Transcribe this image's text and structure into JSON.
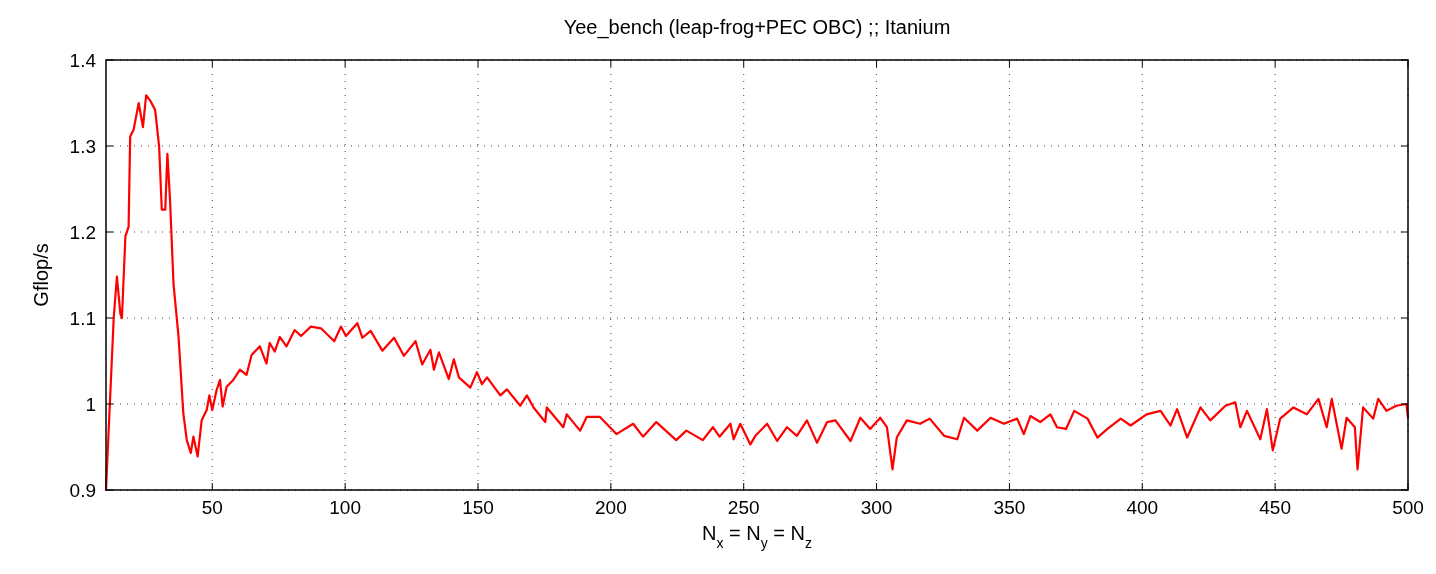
{
  "chart_data": {
    "type": "line",
    "title": "Yee_bench (leap-frog+PEC OBC) ;; Itanium",
    "xlabel": "N$_{x}$ = N$_{y}$ = N$_{z}$",
    "ylabel": "Gflop/s",
    "xlim": [
      10,
      500
    ],
    "xticks": [
      50,
      100,
      150,
      200,
      250,
      300,
      350,
      400,
      450,
      500
    ],
    "ylim": [
      0.9,
      1.4
    ],
    "yticks": [
      0.9,
      1,
      1.1,
      1.2,
      1.3,
      1.4
    ],
    "grid": true,
    "line_style": "solid",
    "marker": "none",
    "series": [
      {
        "color": "#ff0000",
        "x": [
          10,
          12.9,
          14.1,
          15.4,
          16,
          17.3,
          18.5,
          19.1,
          20.4,
          22.3,
          23.9,
          25.1,
          26.6,
          28.5,
          30,
          31,
          32.3,
          33.1,
          34.1,
          35.4,
          37.3,
          39.1,
          40.4,
          41.9,
          42.9,
          44.5,
          46,
          47.9,
          48.9,
          50,
          51.6,
          52.9,
          53.9,
          55.4,
          57.9,
          60.4,
          62.9,
          64.8,
          67.9,
          70.4,
          71.6,
          73.5,
          75.4,
          77.9,
          81,
          83.4,
          87.1,
          90.9,
          95.9,
          98.4,
          100.3,
          104.6,
          106.5,
          109.6,
          114,
          118.4,
          122.1,
          126.5,
          129,
          132.1,
          133.4,
          135.3,
          139,
          140.9,
          142.8,
          147.1,
          149.6,
          151.5,
          153.4,
          158.4,
          160.9,
          165.9,
          168.4,
          170.9,
          175.3,
          175.9,
          182.1,
          183.4,
          188.4,
          190.9,
          195.9,
          202.1,
          208.4,
          212.1,
          217.1,
          224.6,
          228.4,
          234.6,
          238.4,
          240.9,
          245,
          246.2,
          248.7,
          252.5,
          254.4,
          258.8,
          262.6,
          266.3,
          270,
          273.8,
          277.6,
          281.4,
          284.5,
          290.2,
          293.9,
          297.6,
          301.4,
          303.9,
          306,
          307.6,
          311.4,
          316.4,
          320,
          325.4,
          330.4,
          332.9,
          337.9,
          342.9,
          347.9,
          352.9,
          355.4,
          357.9,
          361.6,
          365.4,
          367.9,
          371.3,
          374.4,
          379.4,
          383.1,
          386.9,
          391.9,
          395.6,
          401.6,
          406.9,
          410.6,
          413.1,
          416.9,
          421.9,
          425.6,
          431.3,
          435,
          436.9,
          439.4,
          444.4,
          446.9,
          449.1,
          451.9,
          456.9,
          461.9,
          466.3,
          469.4,
          471.3,
          475,
          476.9,
          480,
          481,
          483.1,
          486.9,
          488.8,
          491.9,
          495.6,
          499.4,
          500
        ],
        "values": [
          0.9,
          1.1,
          1.148,
          1.105,
          1.1,
          1.195,
          1.206,
          1.311,
          1.319,
          1.35,
          1.322,
          1.359,
          1.353,
          1.342,
          1.299,
          1.226,
          1.226,
          1.291,
          1.237,
          1.14,
          1.078,
          0.989,
          0.958,
          0.943,
          0.962,
          0.939,
          0.981,
          0.993,
          1.01,
          0.993,
          1.016,
          1.028,
          0.997,
          1.02,
          1.028,
          1.04,
          1.034,
          1.057,
          1.067,
          1.047,
          1.071,
          1.061,
          1.078,
          1.067,
          1.086,
          1.079,
          1.09,
          1.088,
          1.073,
          1.09,
          1.079,
          1.094,
          1.077,
          1.085,
          1.062,
          1.077,
          1.056,
          1.073,
          1.046,
          1.063,
          1.04,
          1.06,
          1.029,
          1.052,
          1.031,
          1.019,
          1.037,
          1.023,
          1.031,
          1.01,
          1.017,
          0.998,
          1.01,
          0.996,
          0.979,
          0.996,
          0.973,
          0.988,
          0.969,
          0.985,
          0.985,
          0.965,
          0.977,
          0.962,
          0.979,
          0.958,
          0.969,
          0.958,
          0.973,
          0.962,
          0.977,
          0.959,
          0.977,
          0.953,
          0.963,
          0.977,
          0.957,
          0.973,
          0.963,
          0.981,
          0.955,
          0.979,
          0.981,
          0.957,
          0.984,
          0.971,
          0.984,
          0.973,
          0.924,
          0.961,
          0.981,
          0.977,
          0.983,
          0.963,
          0.959,
          0.984,
          0.969,
          0.984,
          0.977,
          0.983,
          0.965,
          0.986,
          0.979,
          0.988,
          0.973,
          0.971,
          0.992,
          0.983,
          0.961,
          0.971,
          0.983,
          0.975,
          0.988,
          0.992,
          0.975,
          0.994,
          0.961,
          0.996,
          0.981,
          0.998,
          1.002,
          0.973,
          0.992,
          0.959,
          0.994,
          0.946,
          0.983,
          0.996,
          0.988,
          1.006,
          0.973,
          1.006,
          0.948,
          0.984,
          0.973,
          0.924,
          0.996,
          0.983,
          1.006,
          0.992,
          0.998,
          1,
          0.984
        ]
      }
    ]
  }
}
